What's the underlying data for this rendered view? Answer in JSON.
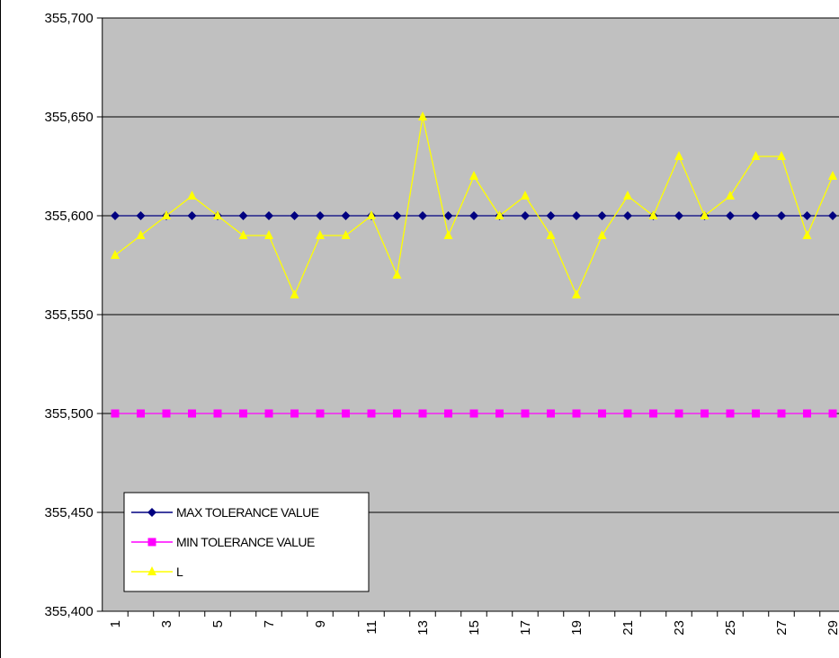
{
  "chart_data": {
    "type": "line",
    "categories": [
      "1",
      null,
      "3",
      null,
      "5",
      null,
      "7",
      null,
      "9",
      null,
      "11",
      null,
      "13",
      null,
      "15",
      null,
      "17",
      null,
      "19",
      null,
      "21",
      null,
      "23",
      null,
      "25",
      null,
      "27",
      null,
      "29"
    ],
    "series": [
      {
        "name": "MAX TOLERANCE VALUE",
        "color": "#000080",
        "marker": "diamond",
        "values": [
          355600,
          355600,
          355600,
          355600,
          355600,
          355600,
          355600,
          355600,
          355600,
          355600,
          355600,
          355600,
          355600,
          355600,
          355600,
          355600,
          355600,
          355600,
          355600,
          355600,
          355600,
          355600,
          355600,
          355600,
          355600,
          355600,
          355600,
          355600,
          355600
        ]
      },
      {
        "name": "MIN TOLERANCE VALUE",
        "color": "#ff00ff",
        "marker": "square",
        "values": [
          355500,
          355500,
          355500,
          355500,
          355500,
          355500,
          355500,
          355500,
          355500,
          355500,
          355500,
          355500,
          355500,
          355500,
          355500,
          355500,
          355500,
          355500,
          355500,
          355500,
          355500,
          355500,
          355500,
          355500,
          355500,
          355500,
          355500,
          355500,
          355500
        ]
      },
      {
        "name": "L",
        "color": "#ffff00",
        "marker": "triangle",
        "values": [
          355580,
          355590,
          355600,
          355610,
          355600,
          355590,
          355590,
          355560,
          355590,
          355590,
          355600,
          355570,
          355650,
          355590,
          355620,
          355600,
          355610,
          355590,
          355560,
          355590,
          355610,
          355600,
          355630,
          355600,
          355610,
          355630,
          355630,
          355590,
          355620
        ]
      }
    ],
    "ylim": [
      355400,
      355700
    ],
    "yticks": [
      {
        "value": 355400,
        "label": "355,400"
      },
      {
        "value": 355450,
        "label": "355,450"
      },
      {
        "value": 355500,
        "label": "355,500"
      },
      {
        "value": 355550,
        "label": "355,550"
      },
      {
        "value": 355600,
        "label": "355,600"
      },
      {
        "value": 355650,
        "label": "355,650"
      },
      {
        "value": 355700,
        "label": "355,700"
      }
    ],
    "grid": true,
    "plot_background": "#c0c0c0",
    "legend": "lower left"
  }
}
